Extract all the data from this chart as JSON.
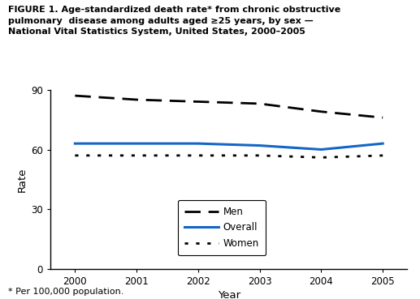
{
  "years": [
    2000,
    2001,
    2002,
    2003,
    2004,
    2005
  ],
  "men_y": [
    87,
    85,
    84,
    83,
    79,
    76
  ],
  "overall_y": [
    63,
    63,
    63,
    62,
    60,
    63
  ],
  "women_y": [
    57,
    57,
    57,
    57,
    56,
    57
  ],
  "ylim": [
    0,
    90
  ],
  "yticks": [
    0,
    30,
    60,
    90
  ],
  "xlabel": "Year",
  "ylabel": "Rate",
  "footnote": "* Per 100,000 population.",
  "title": "FIGURE 1. Age-standardized death rate* from chronic obstructive\npulmonary  disease among adults aged ≥25 years, by sex —\nNational Vital Statistics System, United States, 2000–2005",
  "men_color": "#000000",
  "overall_color": "#1565c8",
  "women_color": "#000000",
  "bg_color": "#ffffff",
  "legend_labels": [
    "Men",
    "Overall",
    "Women"
  ]
}
